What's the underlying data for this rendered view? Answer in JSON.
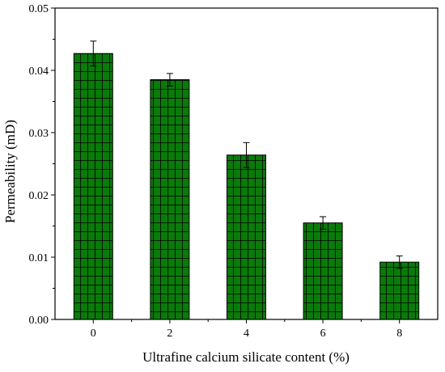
{
  "chart_data": {
    "type": "bar",
    "xlabel": "Ultrafine calcium silicate content (%)",
    "ylabel": "Permeability (mD)",
    "categories": [
      "0",
      "2",
      "4",
      "6",
      "8"
    ],
    "values": [
      0.0427,
      0.0385,
      0.0264,
      0.0155,
      0.0092
    ],
    "errors": [
      0.002,
      0.001,
      0.002,
      0.001,
      0.001
    ],
    "ylim": [
      0,
      0.05
    ],
    "yticks": [
      "0.00",
      "0.01",
      "0.02",
      "0.03",
      "0.04",
      "0.05"
    ],
    "bar_color": "#0a7a0a",
    "grid": false,
    "legend": "none"
  }
}
